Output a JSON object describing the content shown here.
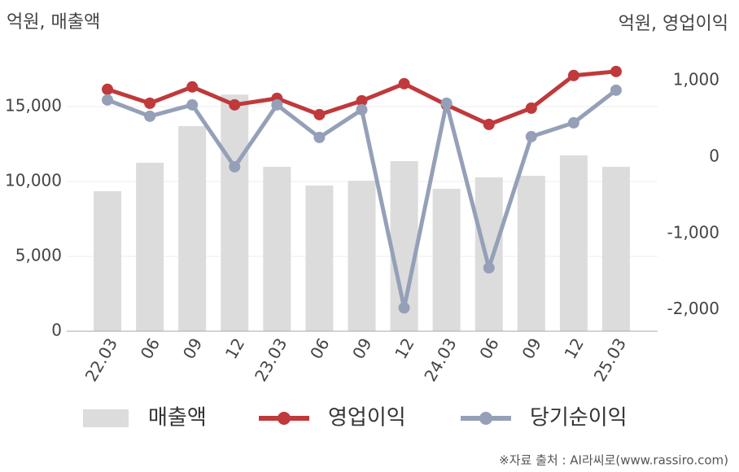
{
  "chart_data": {
    "type": "bar-line",
    "y_label": "억원, 매출액",
    "y2_label": "억원, 영업이익",
    "categories": [
      "22.03",
      "06",
      "09",
      "12",
      "23.03",
      "06",
      "09",
      "12",
      "24.03",
      "06",
      "09",
      "12",
      "25.03"
    ],
    "series": [
      {
        "name": "매출액",
        "type": "bar",
        "color": "#dcdcdc",
        "values": [
          9350,
          11250,
          13700,
          15800,
          10980,
          9730,
          10050,
          11360,
          9510,
          10270,
          10380,
          11740,
          10980
        ]
      },
      {
        "name": "영업이익",
        "type": "line",
        "axis": "y2",
        "color": "#c0393b",
        "values": [
          886,
          704,
          918,
          683,
          768,
          555,
          736,
          960,
          683,
          427,
          640,
          1067,
          1120
        ]
      },
      {
        "name": "당기순이익",
        "type": "line",
        "axis": "y2",
        "color": "#95a0b8",
        "values": [
          747,
          534,
          683,
          -128,
          683,
          256,
          619,
          -1974,
          704,
          -1451,
          267,
          448,
          875
        ]
      }
    ],
    "ylim": [
      0,
      20000
    ],
    "yticks": [
      0,
      {
        "value": 5000,
        "label": "5,000"
      },
      {
        "value": 10000,
        "label": "10,000"
      },
      {
        "value": 15000,
        "label": "15,000"
      }
    ],
    "y2lim": [
      -2280,
      1640
    ],
    "y2ticks": [
      {
        "value": -2000,
        "label": "-2,000"
      },
      {
        "value": -1000,
        "label": "-1,000"
      },
      0,
      {
        "value": 1000,
        "label": "1,000"
      }
    ],
    "grid": true,
    "source": "※자료 출처 : AI라씨로(www.rassiro.com)"
  }
}
